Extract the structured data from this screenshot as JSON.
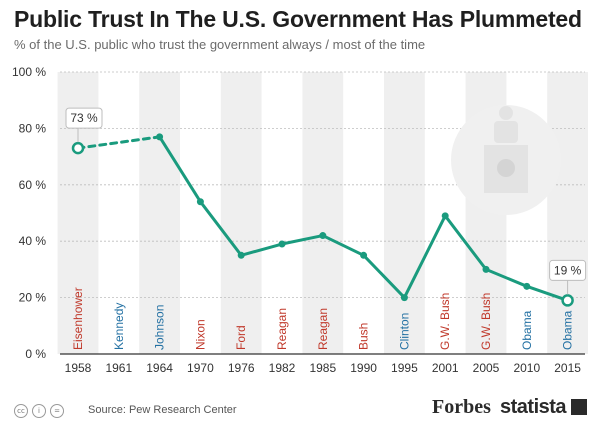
{
  "chart_data": {
    "type": "line",
    "title": "Public Trust In The U.S. Government Has Plummeted",
    "subtitle": "% of the U.S. public who trust the government always / most of the time",
    "x": [
      "1958",
      "1961",
      "1964",
      "1970",
      "1976",
      "1982",
      "1985",
      "1990",
      "1995",
      "2001",
      "2005",
      "2010",
      "2015"
    ],
    "presidents": [
      "Eisenhower",
      "Kennedy",
      "Johnson",
      "Nixon",
      "Ford",
      "Reagan",
      "Reagan",
      "Bush",
      "Clinton",
      "G.W. Bush",
      "G.W. Bush",
      "Obama",
      "Obama"
    ],
    "party": [
      "R",
      "D",
      "D",
      "R",
      "R",
      "R",
      "R",
      "R",
      "D",
      "R",
      "R",
      "D",
      "D"
    ],
    "values": [
      73,
      null,
      77,
      54,
      35,
      39,
      42,
      35,
      20,
      49,
      30,
      24,
      19
    ],
    "ylim": [
      0,
      100
    ],
    "yticks": [
      "0 %",
      "20 %",
      "40 %",
      "60 %",
      "80 %",
      "100 %"
    ],
    "annotations": [
      {
        "x": "1958",
        "label": "73 %"
      },
      {
        "x": "2015",
        "label": "19 %"
      }
    ],
    "dashed_segment": [
      "1958",
      "1964"
    ],
    "colors": {
      "line": "#1a9b7e",
      "republican": "#c0392b",
      "democrat": "#2471a3",
      "band": "#efefef"
    }
  },
  "footer": {
    "source": "Source: Pew Research Center",
    "brand1": "Forbes",
    "brand2": "statista"
  }
}
